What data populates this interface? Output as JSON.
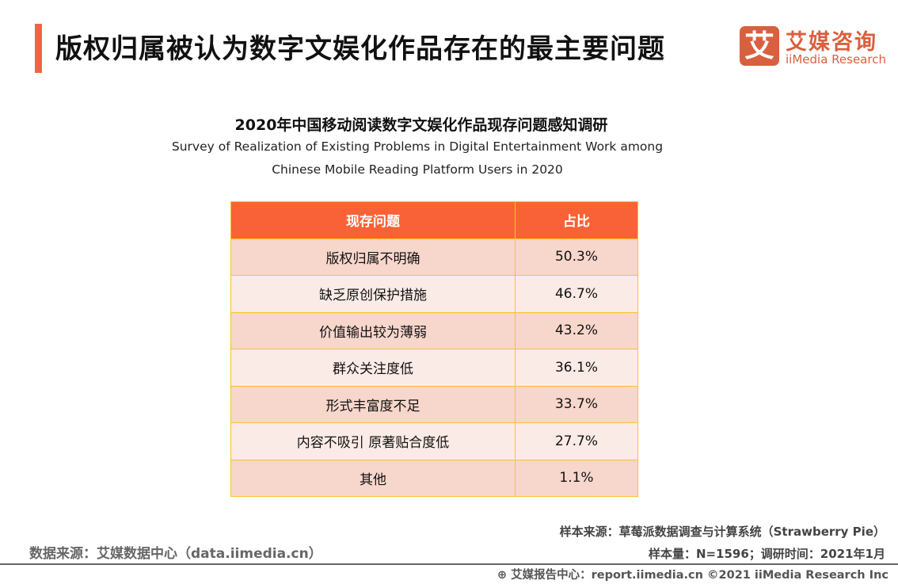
{
  "header": {
    "title": "版权归属被认为数字文娱化作品存在的最主要问题"
  },
  "logo": {
    "mark": "艾",
    "cn": "艾媒咨询",
    "en": "iiMedia Research",
    "color": "#d9603f"
  },
  "chart_data": {
    "type": "table",
    "title": "2020年中国移动阅读数字文娱化作品现存问题感知调研",
    "subtitle_line1": "Survey of  Realization of Existing Problems in Digital Entertainment Work among",
    "subtitle_line2": "Chinese Mobile Reading Platform Users in 2020",
    "columns": [
      "现存问题",
      "占比"
    ],
    "rows": [
      [
        "版权归属不明确",
        "50.3%"
      ],
      [
        "缺乏原创保护措施",
        "46.7%"
      ],
      [
        "价值输出较为薄弱",
        "43.2%"
      ],
      [
        "群众关注度低",
        "36.1%"
      ],
      [
        "形式丰富度不足",
        "33.7%"
      ],
      [
        "内容不吸引 原著贴合度低",
        "27.7%"
      ],
      [
        "其他",
        "1.1%"
      ]
    ],
    "colors": {
      "header": "#f96236",
      "row_odd": "#f7d6cb",
      "row_even": "#fbebe6",
      "border": "#fcc12c"
    }
  },
  "footer": {
    "data_source": "数据来源：艾媒数据中心（data.iimedia.cn）",
    "sample_source": "样本来源：草莓派数据调查与计算系统（Strawberry Pie）",
    "sample_info": "样本量：N=1596；调研时间：2021年1月",
    "report_center": "艾媒报告中心：report.iimedia.cn   ©2021  iiMedia Research  Inc"
  }
}
